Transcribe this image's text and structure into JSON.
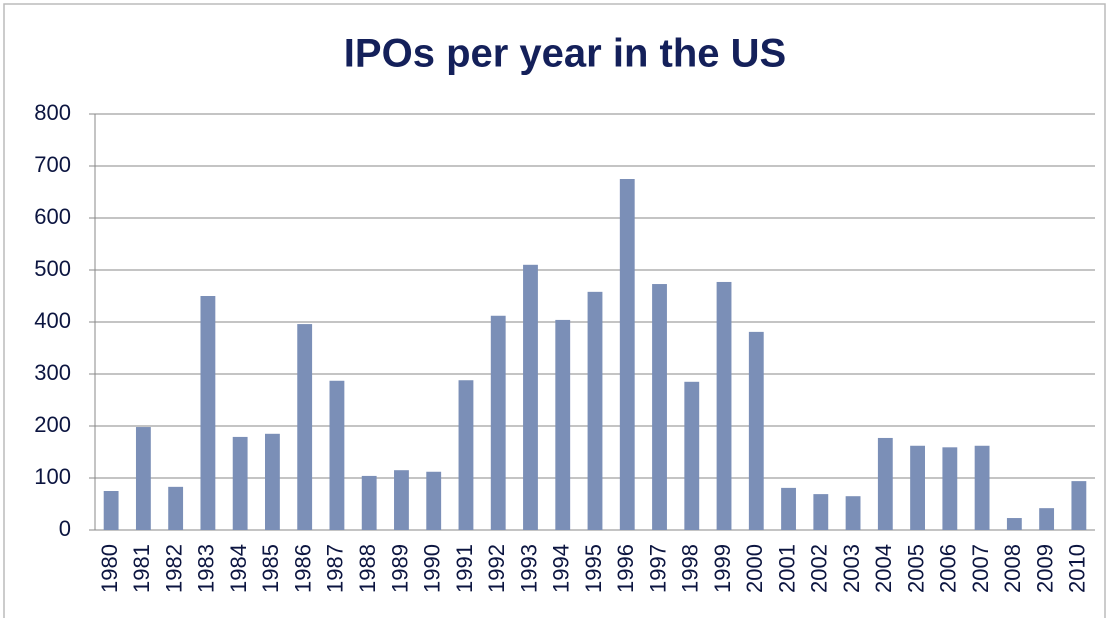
{
  "chart_data": {
    "type": "bar",
    "title": "IPOs per year in the US",
    "categories": [
      "1980",
      "1981",
      "1982",
      "1983",
      "1984",
      "1985",
      "1986",
      "1987",
      "1988",
      "1989",
      "1990",
      "1991",
      "1992",
      "1993",
      "1994",
      "1995",
      "1996",
      "1997",
      "1998",
      "1999",
      "2000",
      "2001",
      "2002",
      "2003",
      "2004",
      "2005",
      "2006",
      "2007",
      "2008",
      "2009",
      "2010"
    ],
    "values": [
      75,
      198,
      83,
      450,
      179,
      185,
      396,
      287,
      104,
      115,
      112,
      288,
      412,
      510,
      404,
      458,
      675,
      473,
      285,
      477,
      381,
      81,
      69,
      65,
      177,
      162,
      159,
      162,
      23,
      42,
      94
    ],
    "color": "#7b8fb7",
    "ylim": [
      0,
      800
    ],
    "yticks": [
      0,
      100,
      200,
      300,
      400,
      500,
      600,
      700,
      800
    ],
    "grid": true
  }
}
